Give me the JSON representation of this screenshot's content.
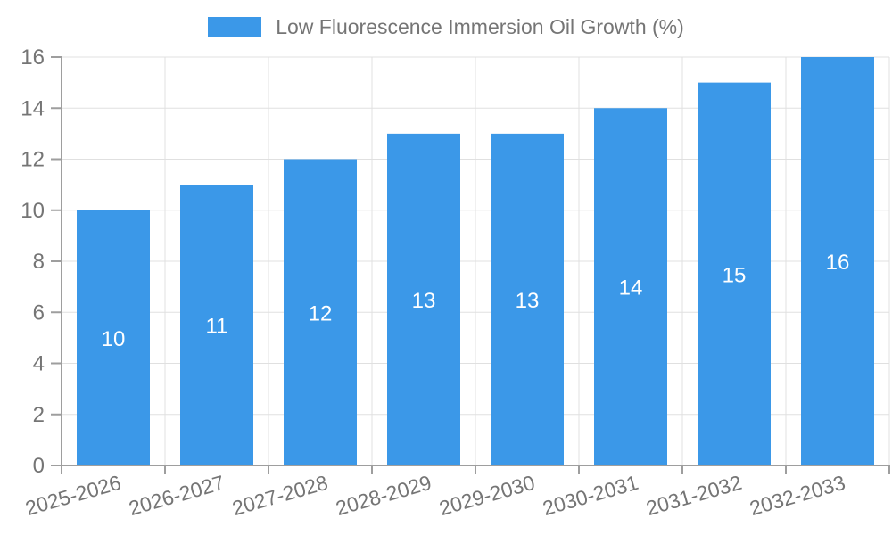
{
  "chart_data": {
    "type": "bar",
    "title": "Low Fluorescence Immersion Oil Growth (%)",
    "categories": [
      "2025-2026",
      "2026-2027",
      "2027-2028",
      "2028-2029",
      "2029-2030",
      "2030-2031",
      "2031-2032",
      "2032-2033"
    ],
    "values": [
      10,
      11,
      12,
      13,
      13,
      14,
      15,
      16
    ],
    "xlabel": "",
    "ylabel": "",
    "ylim": [
      0,
      16
    ],
    "ytick_step": 2,
    "ytick_labels": [
      "0",
      "2",
      "4",
      "6",
      "8",
      "10",
      "12",
      "14",
      "16"
    ],
    "grid": true,
    "legend_position": "top",
    "value_labels_inside_bars": true,
    "colors": {
      "bar": "#3B98E8",
      "grid": "#E0E0E0",
      "axis": "#9E9E9E",
      "tick_label": "#757575",
      "value_label": "#FFFFFF"
    }
  }
}
